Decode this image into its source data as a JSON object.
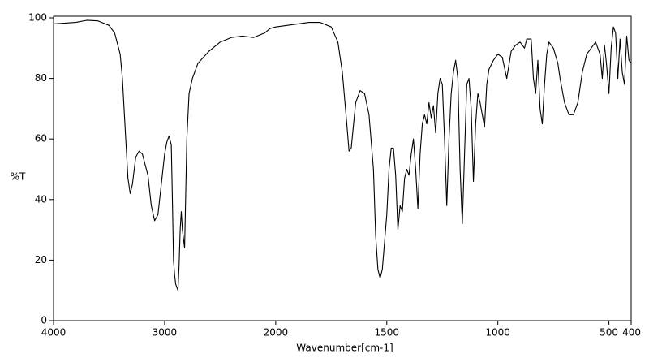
{
  "chart_data": {
    "type": "line",
    "x_label": "Wavenumber[cm-1]",
    "y_label": "%T",
    "xlim": [
      4000,
      400
    ],
    "ylim": [
      0,
      100
    ],
    "x_scale_change": 2000,
    "xticks": [
      4000,
      3000,
      2000,
      1500,
      1000,
      500,
      400
    ],
    "yticks": [
      0,
      20,
      40,
      60,
      80,
      100
    ],
    "grid": false,
    "series": [
      {
        "color": "#000000",
        "x": [
          4000,
          3800,
          3700,
          3600,
          3500,
          3450,
          3400,
          3380,
          3350,
          3330,
          3310,
          3290,
          3260,
          3230,
          3200,
          3150,
          3120,
          3090,
          3060,
          3030,
          3000,
          2980,
          2960,
          2940,
          2930,
          2920,
          2910,
          2900,
          2880,
          2870,
          2860,
          2850,
          2840,
          2820,
          2800,
          2780,
          2750,
          2700,
          2600,
          2500,
          2400,
          2300,
          2200,
          2100,
          2050,
          2000,
          1900,
          1850,
          1800,
          1750,
          1720,
          1700,
          1680,
          1670,
          1660,
          1640,
          1620,
          1600,
          1580,
          1560,
          1550,
          1540,
          1530,
          1520,
          1500,
          1490,
          1480,
          1470,
          1460,
          1450,
          1440,
          1430,
          1420,
          1410,
          1400,
          1390,
          1380,
          1370,
          1360,
          1350,
          1340,
          1330,
          1320,
          1310,
          1300,
          1290,
          1280,
          1270,
          1260,
          1250,
          1240,
          1230,
          1220,
          1210,
          1200,
          1190,
          1180,
          1170,
          1160,
          1150,
          1140,
          1130,
          1120,
          1110,
          1100,
          1090,
          1080,
          1070,
          1060,
          1050,
          1040,
          1020,
          1000,
          980,
          960,
          940,
          920,
          900,
          880,
          870,
          850,
          840,
          830,
          820,
          810,
          800,
          790,
          780,
          770,
          750,
          730,
          720,
          700,
          680,
          660,
          640,
          620,
          600,
          580,
          560,
          540,
          530,
          520,
          510,
          500,
          490,
          480,
          470,
          460,
          450,
          440,
          430,
          420,
          410,
          400
        ],
        "values": [
          98,
          98.5,
          99.2,
          99,
          97.5,
          95,
          88,
          80,
          60,
          47,
          42,
          45,
          54,
          56,
          55,
          48,
          38,
          33,
          35,
          45,
          55,
          59,
          61,
          58,
          40,
          20,
          15,
          12,
          10,
          18,
          30,
          36,
          30,
          24,
          60,
          75,
          80,
          85,
          89,
          92,
          93.5,
          94,
          93.5,
          95,
          96.5,
          97,
          98,
          98.5,
          98.5,
          97,
          92,
          82,
          65,
          56,
          57,
          72,
          76,
          75,
          68,
          50,
          28,
          17,
          14,
          17,
          35,
          50,
          57,
          57,
          48,
          30,
          38,
          36,
          47,
          50,
          48,
          55,
          60,
          50,
          37,
          55,
          65,
          68,
          65,
          72,
          67,
          71,
          62,
          75,
          80,
          78,
          60,
          38,
          60,
          75,
          82,
          86,
          80,
          50,
          32,
          55,
          78,
          80,
          70,
          46,
          65,
          75,
          72,
          68,
          64,
          78,
          83,
          86,
          88,
          87,
          80,
          89,
          91,
          92,
          90,
          93,
          93,
          80,
          75,
          86,
          70,
          65,
          78,
          88,
          92,
          90,
          85,
          80,
          72,
          68,
          68,
          72,
          82,
          88,
          90,
          92,
          88,
          80,
          91,
          84,
          75,
          90,
          97,
          95,
          80,
          93,
          82,
          78,
          94,
          86,
          85
        ]
      }
    ]
  }
}
